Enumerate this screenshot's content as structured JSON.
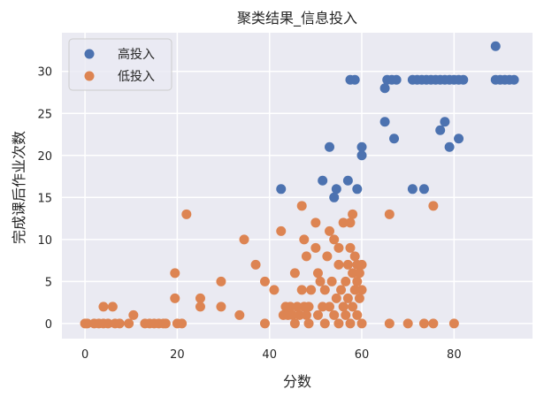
{
  "chart_data": {
    "type": "scatter",
    "title": "聚类结果_信息投入",
    "xlabel": "分数",
    "ylabel": "完成课后作业次数",
    "xlim": [
      -5,
      97
    ],
    "ylim": [
      -1.8,
      34.6
    ],
    "xticks": [
      0,
      20,
      40,
      60,
      80
    ],
    "yticks": [
      0,
      5,
      10,
      15,
      20,
      25,
      30
    ],
    "grid": true,
    "background": "#eaeaf2",
    "legend": {
      "position": "upper left",
      "entries": [
        "高投入",
        "低投入"
      ]
    },
    "series": [
      {
        "name": "高投入",
        "color": "#4c72b0",
        "points": [
          [
            89,
            33
          ],
          [
            57.5,
            29
          ],
          [
            58.5,
            29
          ],
          [
            65.5,
            29
          ],
          [
            66.5,
            29
          ],
          [
            67.5,
            29
          ],
          [
            71,
            29
          ],
          [
            72,
            29
          ],
          [
            73,
            29
          ],
          [
            74,
            29
          ],
          [
            75,
            29
          ],
          [
            76,
            29
          ],
          [
            77,
            29
          ],
          [
            78,
            29
          ],
          [
            79,
            29
          ],
          [
            80,
            29
          ],
          [
            81,
            29
          ],
          [
            82,
            29
          ],
          [
            89,
            29
          ],
          [
            90,
            29
          ],
          [
            91,
            29
          ],
          [
            92,
            29
          ],
          [
            93,
            29
          ],
          [
            65,
            28
          ],
          [
            65,
            24
          ],
          [
            67,
            22
          ],
          [
            78,
            24
          ],
          [
            77,
            23
          ],
          [
            81,
            22
          ],
          [
            79,
            21
          ],
          [
            53,
            21
          ],
          [
            60,
            21
          ],
          [
            60,
            20
          ],
          [
            42.5,
            16
          ],
          [
            51.5,
            17
          ],
          [
            54.5,
            16
          ],
          [
            57,
            17
          ],
          [
            59,
            16
          ],
          [
            54,
            15
          ],
          [
            71,
            16
          ],
          [
            73.5,
            16
          ]
        ]
      },
      {
        "name": "低投入",
        "color": "#dd8452",
        "points": [
          [
            0,
            0
          ],
          [
            0.5,
            0
          ],
          [
            2,
            0
          ],
          [
            3,
            0
          ],
          [
            4,
            0
          ],
          [
            5,
            0
          ],
          [
            6.5,
            0
          ],
          [
            7.5,
            0
          ],
          [
            9.5,
            0
          ],
          [
            13,
            0
          ],
          [
            14,
            0
          ],
          [
            15,
            0
          ],
          [
            16,
            0
          ],
          [
            17,
            0
          ],
          [
            17.5,
            0
          ],
          [
            20,
            0
          ],
          [
            21,
            0
          ],
          [
            4,
            2
          ],
          [
            6,
            2
          ],
          [
            10.5,
            1
          ],
          [
            19.5,
            3
          ],
          [
            19.5,
            6
          ],
          [
            22,
            13
          ],
          [
            25,
            2
          ],
          [
            25,
            3
          ],
          [
            29.5,
            2
          ],
          [
            29.5,
            5
          ],
          [
            33.5,
            1
          ],
          [
            34.5,
            10
          ],
          [
            37,
            7
          ],
          [
            39,
            5
          ],
          [
            39,
            0
          ],
          [
            41,
            4
          ],
          [
            42.5,
            11
          ],
          [
            43,
            1
          ],
          [
            43.5,
            2
          ],
          [
            44,
            1
          ],
          [
            44.5,
            2
          ],
          [
            45,
            1
          ],
          [
            45.5,
            0
          ],
          [
            45.5,
            6
          ],
          [
            46,
            2
          ],
          [
            46.5,
            1
          ],
          [
            47,
            4
          ],
          [
            47,
            14
          ],
          [
            47.5,
            10
          ],
          [
            47.5,
            2
          ],
          [
            48,
            1
          ],
          [
            48,
            8
          ],
          [
            48.5,
            0
          ],
          [
            48.5,
            2
          ],
          [
            49,
            4
          ],
          [
            50,
            9
          ],
          [
            50,
            12
          ],
          [
            50.5,
            1
          ],
          [
            50.5,
            6
          ],
          [
            51,
            5
          ],
          [
            51.5,
            2
          ],
          [
            52,
            4
          ],
          [
            52,
            0
          ],
          [
            52.5,
            8
          ],
          [
            53,
            11
          ],
          [
            53,
            2
          ],
          [
            53.5,
            5
          ],
          [
            54,
            1
          ],
          [
            54,
            10
          ],
          [
            54.5,
            3
          ],
          [
            55,
            7
          ],
          [
            55,
            9
          ],
          [
            55,
            0
          ],
          [
            55.5,
            4
          ],
          [
            56,
            2
          ],
          [
            56,
            12
          ],
          [
            56.5,
            1
          ],
          [
            56.5,
            5
          ],
          [
            57,
            3
          ],
          [
            57,
            7
          ],
          [
            57.5,
            9
          ],
          [
            57.5,
            0
          ],
          [
            57.5,
            12
          ],
          [
            58,
            13
          ],
          [
            58,
            2
          ],
          [
            58,
            6
          ],
          [
            58.5,
            4
          ],
          [
            58.5,
            8
          ],
          [
            59,
            1
          ],
          [
            59,
            5
          ],
          [
            59,
            7
          ],
          [
            59.5,
            3
          ],
          [
            59.5,
            6
          ],
          [
            60,
            0
          ],
          [
            60,
            4
          ],
          [
            60,
            7
          ],
          [
            66,
            13
          ],
          [
            66,
            0
          ],
          [
            70,
            0
          ],
          [
            73.5,
            0
          ],
          [
            75.5,
            14
          ],
          [
            75.5,
            0
          ],
          [
            80,
            0
          ]
        ]
      }
    ]
  }
}
